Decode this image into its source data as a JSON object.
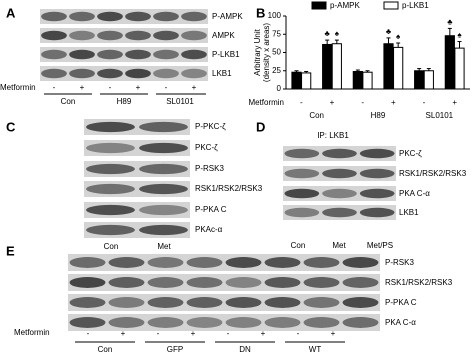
{
  "panels": {
    "A": {
      "label": "A",
      "blots": [
        "P-AMPK",
        "AMPK",
        "P-LKB1",
        "LKB1"
      ],
      "treatment_label": "Metformin",
      "signs": [
        "-",
        "+",
        "-",
        "+",
        "-",
        "+"
      ],
      "groups": [
        "Con",
        "H89",
        "SL0101"
      ]
    },
    "B": {
      "label": "B",
      "chart_data": {
        "type": "bar",
        "ylabel": [
          "Arbitrary Unit",
          "(density x areas)"
        ],
        "xlabel": "Metformin",
        "categories": [
          "-",
          "+",
          "-",
          "+",
          "-",
          "+"
        ],
        "groups": [
          "Con",
          "H89",
          "SL0101"
        ],
        "series": [
          {
            "name": "p-AMPK",
            "color": "#000000",
            "values": [
              23,
              61,
              24,
              62,
              25,
              73
            ],
            "errors": [
              2,
              6,
              2,
              8,
              3,
              10
            ]
          },
          {
            "name": "p-LKB1",
            "color": "#ffffff",
            "values": [
              22,
              62,
              23,
              57,
              25,
              56
            ],
            "errors": [
              2,
              5,
              2,
              6,
              3,
              9
            ]
          }
        ],
        "annotations": [
          {
            "text": "♣",
            "category": 1,
            "series": 0
          },
          {
            "text": "♠",
            "category": 1,
            "series": 1
          },
          {
            "text": "♣",
            "category": 3,
            "series": 0
          },
          {
            "text": "♠",
            "category": 3,
            "series": 1
          },
          {
            "text": "♣",
            "category": 5,
            "series": 0
          },
          {
            "text": "♠",
            "category": 5,
            "series": 1
          }
        ],
        "ylim": [
          0,
          100
        ],
        "yticks": [
          0,
          25,
          50,
          75,
          100
        ],
        "legend": "top"
      }
    },
    "C": {
      "label": "C",
      "blots": [
        "P-PKC-ζ",
        "PKC-ζ",
        "P-RSK3",
        "RSK1/RSK2/RSK3",
        "P-PKA C",
        "PKAc-α"
      ],
      "lanes": [
        "Con",
        "Met"
      ]
    },
    "D": {
      "label": "D",
      "title": "IP: LKB1",
      "blots": [
        "PKC-ζ",
        "RSK1/RSK2/RSK3",
        "PKA C-α",
        "LKB1"
      ],
      "lanes": [
        "Con",
        "Met",
        "Met/PS"
      ]
    },
    "E": {
      "label": "E",
      "blots": [
        "P-RSK3",
        "RSK1/RSK2/RSK3",
        "P-PKA C",
        "PKA C-α"
      ],
      "treatment_label": "Metformin",
      "signs": [
        "-",
        "+",
        "-",
        "+",
        "-",
        "+",
        "-",
        "+"
      ],
      "groups": [
        "Con",
        "GFP",
        "DN",
        "WT"
      ]
    }
  }
}
